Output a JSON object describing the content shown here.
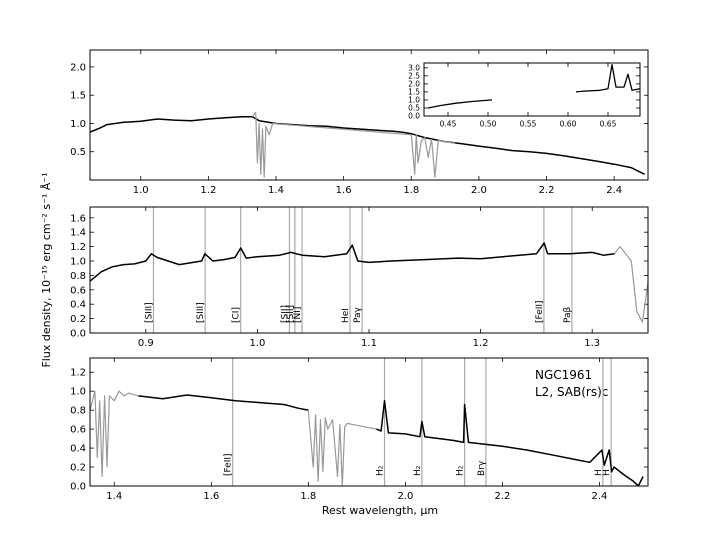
{
  "figure": {
    "ylabel": "Flux density, 10⁻¹⁵ erg cm⁻² s⁻¹ Å⁻¹",
    "xlabel": "Rest wavelength, μm"
  },
  "chart_data": [
    {
      "type": "line",
      "xlim": [
        0.85,
        2.5
      ],
      "ylim": [
        0.0,
        2.3
      ],
      "xticks": [
        1.0,
        1.2,
        1.4,
        1.6,
        1.8,
        2.0,
        2.2,
        2.4
      ],
      "yticks": [
        0.5,
        1.0,
        1.5,
        2.0
      ],
      "series": [
        {
          "color": "#000000",
          "x": [
            0.85,
            0.88,
            0.9,
            0.95,
            1.0,
            1.05,
            1.1,
            1.15,
            1.2,
            1.25,
            1.3,
            1.33,
            1.35,
            1.4,
            1.45,
            1.5,
            1.55,
            1.6,
            1.65,
            1.7,
            1.75,
            1.78,
            1.8,
            1.84,
            1.9,
            1.95,
            2.0,
            2.05,
            2.1,
            2.15,
            2.2,
            2.25,
            2.3,
            2.35,
            2.4,
            2.45,
            2.49
          ],
          "y": [
            0.85,
            0.92,
            0.98,
            1.02,
            1.04,
            1.08,
            1.06,
            1.05,
            1.08,
            1.1,
            1.12,
            1.12,
            1.05,
            1.0,
            0.98,
            0.96,
            0.95,
            0.92,
            0.9,
            0.88,
            0.86,
            0.84,
            0.82,
            0.75,
            0.68,
            0.64,
            0.6,
            0.56,
            0.52,
            0.5,
            0.47,
            0.43,
            0.38,
            0.33,
            0.28,
            0.22,
            0.1
          ]
        },
        {
          "color": "#999999",
          "x": [
            1.33,
            1.34,
            1.345,
            1.35,
            1.355,
            1.36,
            1.365,
            1.37,
            1.38,
            1.39,
            1.8,
            1.81,
            1.815,
            1.82,
            1.83,
            1.84,
            1.85,
            1.86,
            1.87,
            1.88,
            1.9,
            1.93
          ],
          "y": [
            1.12,
            1.2,
            0.3,
            1.0,
            0.1,
            0.9,
            0.05,
            0.95,
            0.8,
            1.0,
            0.8,
            0.1,
            0.8,
            0.3,
            0.7,
            0.75,
            0.4,
            0.72,
            0.05,
            0.7,
            0.68,
            0.65
          ]
        }
      ],
      "inset": {
        "xlim": [
          0.42,
          0.69
        ],
        "ylim": [
          0.0,
          3.3
        ],
        "xticks": [
          0.45,
          0.5,
          0.55,
          0.6,
          0.65
        ],
        "yticks": [
          0.0,
          0.5,
          1.0,
          1.5,
          2.0,
          2.5,
          3.0
        ],
        "segments": [
          {
            "x": [
              0.425,
              0.44,
              0.46,
              0.48,
              0.505
            ],
            "y": [
              0.5,
              0.65,
              0.8,
              0.9,
              1.0
            ]
          },
          {
            "x": [
              0.61,
              0.62,
              0.64,
              0.65,
              0.655,
              0.66,
              0.67,
              0.675,
              0.68,
              0.69
            ],
            "y": [
              1.5,
              1.55,
              1.6,
              1.7,
              3.2,
              1.8,
              1.8,
              2.6,
              1.6,
              1.7
            ]
          }
        ]
      }
    },
    {
      "type": "line",
      "xlim": [
        0.85,
        1.35
      ],
      "ylim": [
        0.0,
        1.75
      ],
      "xticks": [
        0.9,
        1.0,
        1.1,
        1.2,
        1.3
      ],
      "yticks": [
        0.0,
        0.2,
        0.4,
        0.6,
        0.8,
        1.0,
        1.2,
        1.4,
        1.6
      ],
      "series": [
        {
          "color": "#000000",
          "x": [
            0.85,
            0.86,
            0.87,
            0.88,
            0.89,
            0.9,
            0.905,
            0.91,
            0.92,
            0.93,
            0.95,
            0.953,
            0.96,
            0.97,
            0.98,
            0.985,
            0.99,
            1.0,
            1.02,
            1.03,
            1.04,
            1.06,
            1.08,
            1.085,
            1.09,
            1.1,
            1.12,
            1.15,
            1.18,
            1.2,
            1.22,
            1.25,
            1.257,
            1.26,
            1.28,
            1.3,
            1.31,
            1.32
          ],
          "y": [
            0.72,
            0.85,
            0.92,
            0.95,
            0.96,
            1.0,
            1.1,
            1.05,
            1.0,
            0.95,
            1.0,
            1.1,
            1.0,
            1.02,
            1.05,
            1.18,
            1.04,
            1.06,
            1.08,
            1.12,
            1.08,
            1.06,
            1.1,
            1.22,
            1.0,
            0.98,
            1.0,
            1.02,
            1.04,
            1.03,
            1.06,
            1.1,
            1.25,
            1.1,
            1.1,
            1.12,
            1.08,
            1.1
          ]
        },
        {
          "color": "#999999",
          "x": [
            1.32,
            1.325,
            1.33,
            1.335,
            1.34,
            1.345,
            1.35
          ],
          "y": [
            1.1,
            1.2,
            1.1,
            1.0,
            0.3,
            0.15,
            0.7
          ]
        }
      ],
      "lines": [
        {
          "x": 0.9069,
          "label": "[SIII]"
        },
        {
          "x": 0.9532,
          "label": "[SIII]"
        },
        {
          "x": 0.985,
          "label": "[CI]"
        },
        {
          "x": 1.0287,
          "label": "[SII]"
        },
        {
          "x": 1.0336,
          "label": "[SII]"
        },
        {
          "x": 1.04,
          "label": "[NI]"
        },
        {
          "x": 1.083,
          "label": "HeI"
        },
        {
          "x": 1.0938,
          "label": "Paγ"
        },
        {
          "x": 1.2567,
          "label": "[FeII]"
        },
        {
          "x": 1.2818,
          "label": "Paβ"
        }
      ]
    },
    {
      "type": "line",
      "xlim": [
        1.35,
        2.5
      ],
      "ylim": [
        0.0,
        1.35
      ],
      "xticks": [
        1.4,
        1.6,
        1.8,
        2.0,
        2.2,
        2.4
      ],
      "yticks": [
        0.0,
        0.2,
        0.4,
        0.6,
        0.8,
        1.0,
        1.2
      ],
      "series": [
        {
          "color": "#999999",
          "x": [
            1.35,
            1.36,
            1.365,
            1.37,
            1.375,
            1.38,
            1.385,
            1.39,
            1.4,
            1.41,
            1.42,
            1.43,
            1.45
          ],
          "y": [
            0.8,
            1.0,
            0.3,
            0.9,
            0.1,
            0.95,
            0.2,
            0.95,
            0.9,
            1.0,
            0.95,
            0.98,
            0.95
          ],
          "gaps": []
        },
        {
          "color": "#000000",
          "x": [
            1.45,
            1.5,
            1.55,
            1.6,
            1.65,
            1.7,
            1.75,
            1.78,
            1.8
          ],
          "y": [
            0.95,
            0.92,
            0.96,
            0.93,
            0.9,
            0.88,
            0.86,
            0.82,
            0.8
          ]
        },
        {
          "color": "#999999",
          "x": [
            1.8,
            1.81,
            1.815,
            1.82,
            1.825,
            1.83,
            1.835,
            1.84,
            1.85,
            1.86,
            1.865,
            1.87,
            1.875,
            1.88,
            1.9,
            1.92,
            1.94
          ],
          "y": [
            0.8,
            0.2,
            0.75,
            0.05,
            0.7,
            0.15,
            0.72,
            0.6,
            0.7,
            0.1,
            0.65,
            0.0,
            0.62,
            0.66,
            0.64,
            0.62,
            0.6
          ]
        },
        {
          "color": "#000000",
          "x": [
            1.94,
            1.95,
            1.957,
            1.965,
            2.0,
            2.03,
            2.034,
            2.04,
            2.1,
            2.12,
            2.122,
            2.13,
            2.2,
            2.25,
            2.3,
            2.35,
            2.38,
            2.405,
            2.41,
            2.42,
            2.425,
            2.43,
            2.45,
            2.47,
            2.48,
            2.49
          ],
          "y": [
            0.6,
            0.58,
            0.9,
            0.56,
            0.55,
            0.52,
            0.68,
            0.52,
            0.48,
            0.46,
            0.86,
            0.46,
            0.42,
            0.38,
            0.33,
            0.28,
            0.25,
            0.38,
            0.22,
            0.38,
            0.15,
            0.2,
            0.12,
            0.05,
            0.0,
            0.1
          ]
        }
      ],
      "lines": [
        {
          "x": 1.644,
          "label": "[FeII]"
        },
        {
          "x": 1.957,
          "label": "H₂"
        },
        {
          "x": 2.034,
          "label": "H₂"
        },
        {
          "x": 2.122,
          "label": "H₂"
        },
        {
          "x": 2.166,
          "label": "Brγ"
        },
        {
          "x": 2.407,
          "label": "H"
        },
        {
          "x": 2.424,
          "label": "H"
        }
      ],
      "annotation": {
        "object": "NGC1961",
        "classification": "L2,  SAB(rs)c"
      }
    }
  ]
}
